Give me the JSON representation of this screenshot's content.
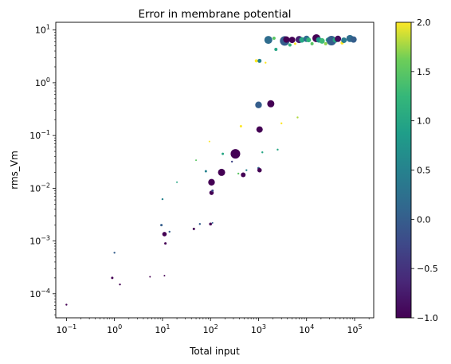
{
  "chart_data": {
    "type": "scatter",
    "title": "Error in membrane potential",
    "xlabel": "Total input",
    "ylabel": "rms_Vm",
    "xscale": "log",
    "yscale": "log",
    "xlim": [
      0.06,
      250000
    ],
    "ylim": [
      3.5e-05,
      14
    ],
    "grid": false,
    "x_ticks": [
      {
        "value": 0.1,
        "base": "10",
        "exp": "−1"
      },
      {
        "value": 1,
        "base": "10",
        "exp": "0"
      },
      {
        "value": 10,
        "base": "10",
        "exp": "1"
      },
      {
        "value": 100,
        "base": "10",
        "exp": "2"
      },
      {
        "value": 1000,
        "base": "10",
        "exp": "3"
      },
      {
        "value": 10000,
        "base": "10",
        "exp": "4"
      },
      {
        "value": 100000,
        "base": "10",
        "exp": "5"
      }
    ],
    "y_ticks": [
      {
        "value": 0.0001,
        "base": "10",
        "exp": "−4"
      },
      {
        "value": 0.001,
        "base": "10",
        "exp": "−3"
      },
      {
        "value": 0.01,
        "base": "10",
        "exp": "−2"
      },
      {
        "value": 0.1,
        "base": "10",
        "exp": "−1"
      },
      {
        "value": 1,
        "base": "10",
        "exp": "0"
      },
      {
        "value": 10,
        "base": "10",
        "exp": "1"
      }
    ],
    "colorbar": {
      "colormap": "viridis",
      "min": -1.0,
      "max": 2.0,
      "ticks": [
        {
          "value": -1.0,
          "label": "−1.0"
        },
        {
          "value": -0.5,
          "label": "−0.5"
        },
        {
          "value": 0.0,
          "label": "0.0"
        },
        {
          "value": 0.5,
          "label": "0.5"
        },
        {
          "value": 1.0,
          "label": "1.0"
        },
        {
          "value": 1.5,
          "label": "1.5"
        },
        {
          "value": 2.0,
          "label": "2.0"
        }
      ]
    },
    "points": [
      {
        "x": 0.1,
        "y": 6.2e-05,
        "c": -1.0,
        "r": 1.2
      },
      {
        "x": 0.9,
        "y": 0.0002,
        "c": -1.0,
        "r": 1.5
      },
      {
        "x": 1.3,
        "y": 0.00015,
        "c": -1.0,
        "r": 1.2
      },
      {
        "x": 1.0,
        "y": 0.0006,
        "c": 0.0,
        "r": 1.2
      },
      {
        "x": 5.5,
        "y": 0.00021,
        "c": -1.0,
        "r": 1.0
      },
      {
        "x": 11,
        "y": 0.00022,
        "c": -1.0,
        "r": 1.0
      },
      {
        "x": 9.5,
        "y": 0.002,
        "c": 0.0,
        "r": 1.5
      },
      {
        "x": 10,
        "y": 0.0062,
        "c": 0.5,
        "r": 1.2
      },
      {
        "x": 11,
        "y": 0.00135,
        "c": -1.0,
        "r": 2.8
      },
      {
        "x": 11.5,
        "y": 0.0009,
        "c": -1.0,
        "r": 1.5
      },
      {
        "x": 14,
        "y": 0.0015,
        "c": 0.0,
        "r": 1.2
      },
      {
        "x": 20,
        "y": 0.013,
        "c": 1.0,
        "r": 1.0
      },
      {
        "x": 45,
        "y": 0.0017,
        "c": -1.0,
        "r": 1.5
      },
      {
        "x": 50,
        "y": 0.034,
        "c": 1.5,
        "r": 1.0
      },
      {
        "x": 60,
        "y": 0.0021,
        "c": 0.0,
        "r": 1.2
      },
      {
        "x": 80,
        "y": 0.021,
        "c": 0.5,
        "r": 1.5
      },
      {
        "x": 95,
        "y": 0.077,
        "c": 2.0,
        "r": 1.0
      },
      {
        "x": 100,
        "y": 0.0021,
        "c": -1.0,
        "r": 1.8
      },
      {
        "x": 105,
        "y": 0.013,
        "c": -1.0,
        "r": 4.2
      },
      {
        "x": 105,
        "y": 0.0082,
        "c": -1.0,
        "r": 2.8
      },
      {
        "x": 110,
        "y": 0.0022,
        "c": 0.0,
        "r": 1.0
      },
      {
        "x": 110,
        "y": 0.009,
        "c": -0.3,
        "r": 1.5
      },
      {
        "x": 170,
        "y": 0.02,
        "c": -1.0,
        "r": 4.5
      },
      {
        "x": 180,
        "y": 0.045,
        "c": 1.0,
        "r": 1.5
      },
      {
        "x": 280,
        "y": 0.032,
        "c": -0.3,
        "r": 1.2
      },
      {
        "x": 330,
        "y": 0.045,
        "c": -1.0,
        "r": 6.0
      },
      {
        "x": 380,
        "y": 0.019,
        "c": 1.5,
        "r": 1.2
      },
      {
        "x": 430,
        "y": 0.15,
        "c": 2.0,
        "r": 1.5
      },
      {
        "x": 480,
        "y": 0.018,
        "c": -1.0,
        "r": 3.0
      },
      {
        "x": 560,
        "y": 0.022,
        "c": 0.5,
        "r": 1.2
      },
      {
        "x": 900,
        "y": 2.6,
        "c": 2.0,
        "r": 2.0
      },
      {
        "x": 1000,
        "y": 0.024,
        "c": 0.0,
        "r": 1.5
      },
      {
        "x": 1000,
        "y": 0.38,
        "c": 0.0,
        "r": 4.2
      },
      {
        "x": 1050,
        "y": 0.022,
        "c": -1.0,
        "r": 2.8
      },
      {
        "x": 1050,
        "y": 0.13,
        "c": -1.0,
        "r": 4.0
      },
      {
        "x": 1050,
        "y": 2.6,
        "c": 0.5,
        "r": 2.5
      },
      {
        "x": 1200,
        "y": 0.048,
        "c": 1.0,
        "r": 1.2
      },
      {
        "x": 1400,
        "y": 2.4,
        "c": 2.0,
        "r": 1.2
      },
      {
        "x": 1600,
        "y": 6.5,
        "c": 0.2,
        "r": 5.0
      },
      {
        "x": 1800,
        "y": 0.4,
        "c": -1.0,
        "r": 4.5
      },
      {
        "x": 2100,
        "y": 7.0,
        "c": 1.5,
        "r": 2.0
      },
      {
        "x": 2300,
        "y": 4.3,
        "c": 1.0,
        "r": 2.0
      },
      {
        "x": 2500,
        "y": 0.054,
        "c": 1.0,
        "r": 1.2
      },
      {
        "x": 3000,
        "y": 0.17,
        "c": 2.0,
        "r": 1.2
      },
      {
        "x": 3500,
        "y": 6.2,
        "c": 0.0,
        "r": 6.0
      },
      {
        "x": 3800,
        "y": 6.6,
        "c": -1.0,
        "r": 4.0
      },
      {
        "x": 4500,
        "y": 5.2,
        "c": 1.2,
        "r": 2.0
      },
      {
        "x": 5000,
        "y": 6.5,
        "c": -1.0,
        "r": 4.0
      },
      {
        "x": 5800,
        "y": 5.5,
        "c": 2.0,
        "r": 1.5
      },
      {
        "x": 6500,
        "y": 0.22,
        "c": 1.8,
        "r": 1.2
      },
      {
        "x": 7000,
        "y": 6.6,
        "c": -0.7,
        "r": 4.5
      },
      {
        "x": 8000,
        "y": 6.5,
        "c": 1.0,
        "r": 3.5
      },
      {
        "x": 10000,
        "y": 6.8,
        "c": 0.2,
        "r": 4.0
      },
      {
        "x": 11000,
        "y": 6.5,
        "c": 1.2,
        "r": 3.0
      },
      {
        "x": 13000,
        "y": 5.5,
        "c": 1.5,
        "r": 2.0
      },
      {
        "x": 16000,
        "y": 7.0,
        "c": -1.0,
        "r": 5.0
      },
      {
        "x": 18000,
        "y": 6.5,
        "c": 0.8,
        "r": 3.5
      },
      {
        "x": 21000,
        "y": 6.2,
        "c": 1.3,
        "r": 3.5
      },
      {
        "x": 25000,
        "y": 5.5,
        "c": 1.7,
        "r": 2.0
      },
      {
        "x": 28000,
        "y": 6.5,
        "c": 1.0,
        "r": 3.0
      },
      {
        "x": 33000,
        "y": 6.3,
        "c": 0.0,
        "r": 6.0
      },
      {
        "x": 40000,
        "y": 6.5,
        "c": 1.0,
        "r": 3.5
      },
      {
        "x": 45000,
        "y": 6.8,
        "c": -0.9,
        "r": 4.0
      },
      {
        "x": 55000,
        "y": 5.7,
        "c": 2.0,
        "r": 2.0
      },
      {
        "x": 60000,
        "y": 6.4,
        "c": 0.4,
        "r": 3.5
      },
      {
        "x": 80000,
        "y": 6.9,
        "c": 0.2,
        "r": 4.5
      },
      {
        "x": 95000,
        "y": 6.6,
        "c": 0.0,
        "r": 4.0
      }
    ]
  }
}
